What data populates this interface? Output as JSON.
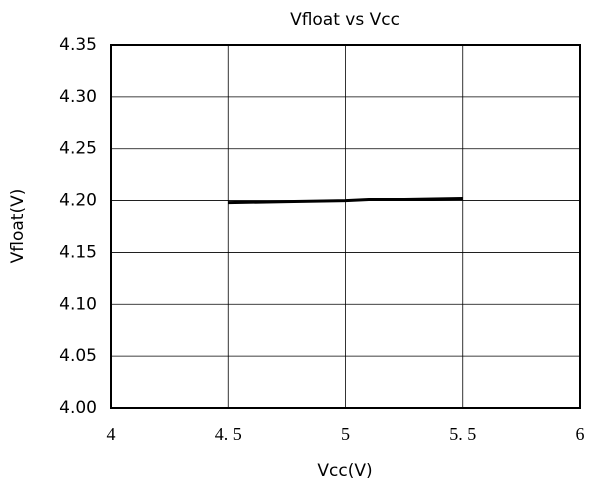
{
  "chart_data": {
    "type": "line",
    "title": "Vfloat  vs  Vcc",
    "x_label": "Vcc(V)",
    "y_label": "Vfloat(V)",
    "x": [
      4.5,
      4.75,
      5.0,
      5.1,
      5.25,
      5.5
    ],
    "series": [
      {
        "name": "Vfloat",
        "color": "#000000",
        "values": [
          4.198,
          4.199,
          4.2,
          4.201,
          4.201,
          4.202
        ]
      }
    ],
    "xlim": [
      4,
      6
    ],
    "xticks": [
      4,
      {
        "value": 4.5,
        "label": "4. 5"
      },
      5,
      {
        "value": 5.5,
        "label": "5. 5"
      },
      6
    ],
    "ylim": [
      4.0,
      4.35
    ],
    "yticks": [
      {
        "value": 4.0,
        "label": "4.00"
      },
      {
        "value": 4.05,
        "label": "4.05"
      },
      {
        "value": 4.1,
        "label": "4.10"
      },
      {
        "value": 4.15,
        "label": "4.15"
      },
      {
        "value": 4.2,
        "label": "4.20"
      },
      {
        "value": 4.25,
        "label": "4.25"
      },
      {
        "value": 4.3,
        "label": "4.30"
      },
      {
        "value": 4.35,
        "label": "4.35"
      }
    ],
    "grid": true
  }
}
